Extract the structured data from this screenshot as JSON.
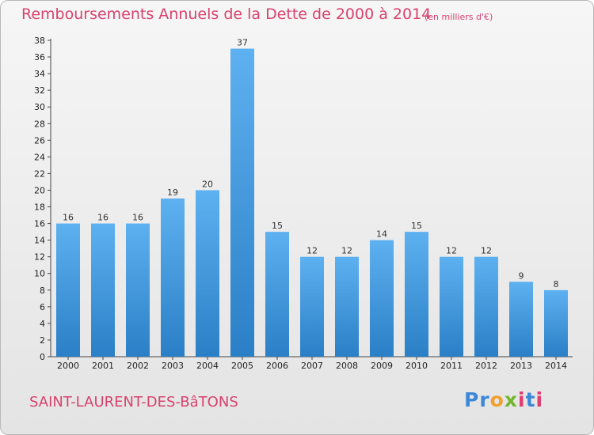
{
  "header": {
    "title": "Remboursements Annuels de la Dette de 2000 à 2014",
    "unit": "(en milliers d'€)"
  },
  "footer": {
    "city": "SAINT-LAURENT-DES-BâTONS",
    "logo": "Proxiti",
    "logo_colors": [
      "#3c87d8",
      "#3c87d8",
      "#f1a02c",
      "#73b62c",
      "#e13b6f",
      "#3c87d8",
      "#e13b6f"
    ]
  },
  "chart_data": {
    "type": "bar",
    "categories": [
      "2000",
      "2001",
      "2002",
      "2003",
      "2004",
      "2005",
      "2006",
      "2007",
      "2008",
      "2009",
      "2010",
      "2011",
      "2012",
      "2013",
      "2014"
    ],
    "series": [
      {
        "values": [
          16,
          16,
          16,
          19,
          20,
          37,
          15,
          12,
          12,
          14,
          15,
          12,
          12,
          9,
          8
        ]
      }
    ],
    "title": "Remboursements Annuels de la Dette de 2000 à 2014",
    "xlabel": "",
    "ylabel": "",
    "ylim": [
      0,
      38
    ],
    "yticks": [
      0,
      2,
      4,
      6,
      8,
      10,
      12,
      14,
      16,
      18,
      20,
      22,
      24,
      26,
      28,
      30,
      32,
      34,
      36,
      38
    ],
    "grid": false,
    "data_labels": true,
    "bar_color": "#3f9be4",
    "bar_color_light": "#5eb1f0",
    "bar_color_dark": "#2a7fc6"
  }
}
